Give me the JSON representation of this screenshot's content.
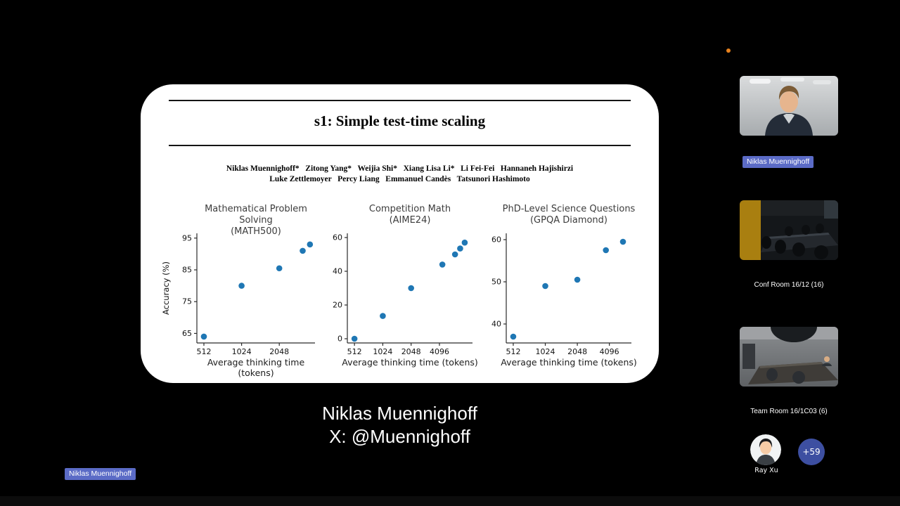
{
  "meeting": {
    "shared_screen": {
      "slide_title": "s1: Simple test-time scaling",
      "authors_line1": "Niklas Muennighoff*   Zitong Yang*   Weijia Shi*   Xiang Lisa Li*   Li Fei-Fei   Hannaneh Hajishirzi",
      "authors_line2": "Luke Zettlemoyer   Percy Liang   Emmanuel Candès   Tatsunori Hashimoto"
    },
    "caption": {
      "line1": "Niklas Muennighoff",
      "line2": "X: @Muennighoff"
    },
    "presenter_nametag": "Niklas Muennighoff"
  },
  "sidebar": {
    "tiles": [
      {
        "type": "camera",
        "name": "Niklas Muennighoff"
      },
      {
        "type": "camera",
        "name": "Conf Room 16/12 (16)"
      },
      {
        "type": "camera",
        "name": "Team Room 16/1C03 (6)"
      },
      {
        "type": "avatar",
        "name": "Ray Xu"
      }
    ],
    "overflow_badge": "+59"
  },
  "colors": {
    "name_pill": "#5b6bc6",
    "overflow_badge": "#3d4fa1",
    "scatter_point": "#1f77b4",
    "background": "#000000",
    "slide_background": "#ffffff",
    "recording_dot": "#e8821e"
  },
  "chart_data": [
    {
      "type": "scatter",
      "title_line1": "Mathematical Problem Solving",
      "title_line2": "(MATH500)",
      "xlabel": "Average thinking time (tokens)",
      "ylabel": "Accuracy (%)",
      "xscale": "log2",
      "x_range": [
        450,
        3950
      ],
      "y_range": [
        62,
        96.5
      ],
      "xticks": [
        512,
        1024,
        2048
      ],
      "yticks": [
        65,
        75,
        85,
        95
      ],
      "points": [
        [
          512,
          64
        ],
        [
          1024,
          80
        ],
        [
          2048,
          85.5
        ],
        [
          3150,
          91
        ],
        [
          3600,
          93
        ]
      ]
    },
    {
      "type": "scatter",
      "title_line1": "Competition Math",
      "title_line2": "(AIME24)",
      "xlabel": "Average thinking time (tokens)",
      "ylabel": "",
      "xscale": "log2",
      "x_range": [
        430,
        9200
      ],
      "y_range": [
        -2.5,
        62.5
      ],
      "xticks": [
        512,
        1024,
        2048,
        4096
      ],
      "yticks": [
        0,
        20,
        40,
        60
      ],
      "points": [
        [
          512,
          0
        ],
        [
          1024,
          13.5
        ],
        [
          2048,
          30
        ],
        [
          4400,
          44
        ],
        [
          6000,
          50
        ],
        [
          6800,
          53.5
        ],
        [
          7600,
          57
        ]
      ]
    },
    {
      "type": "scatter",
      "title_line1": "PhD-Level Science Questions",
      "title_line2": "(GPQA Diamond)",
      "xlabel": "Average thinking time (tokens)",
      "ylabel": "",
      "xscale": "log2",
      "x_range": [
        440,
        6600
      ],
      "y_range": [
        35.5,
        61.5
      ],
      "xticks": [
        512,
        1024,
        2048,
        4096
      ],
      "yticks": [
        40,
        50,
        60
      ],
      "points": [
        [
          512,
          37
        ],
        [
          1024,
          49
        ],
        [
          2048,
          50.5
        ],
        [
          3800,
          57.5
        ],
        [
          5500,
          59.5
        ]
      ]
    }
  ]
}
